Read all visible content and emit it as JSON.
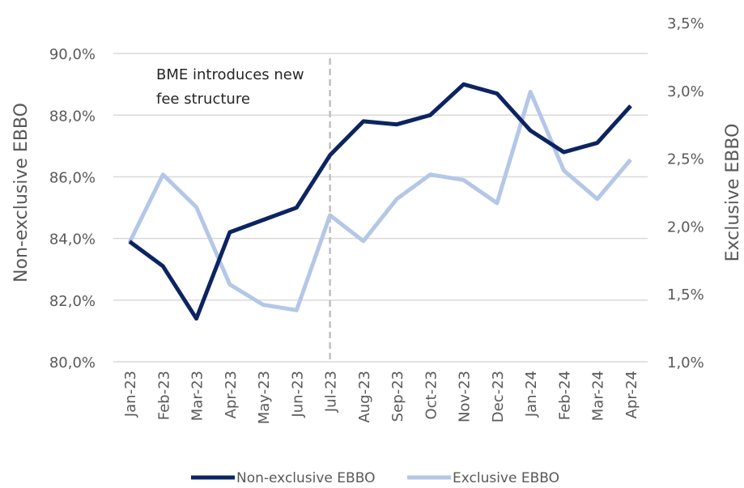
{
  "chart_data": {
    "type": "line",
    "categories": [
      "Jan-23",
      "Feb-23",
      "Mar-23",
      "Apr-23",
      "May-23",
      "Jun-23",
      "Jul-23",
      "Aug-23",
      "Sep-23",
      "Oct-23",
      "Nov-23",
      "Dec-23",
      "Jan-24",
      "Feb-24",
      "Mar-24",
      "Apr-24"
    ],
    "series": [
      {
        "name": "Non-exclusive EBBO",
        "color": "#0c2461",
        "axis": "y",
        "values": [
          83.9,
          83.1,
          81.4,
          84.2,
          84.6,
          85.0,
          86.7,
          87.8,
          87.7,
          88.0,
          89.0,
          88.7,
          87.5,
          86.8,
          87.1,
          88.3
        ]
      },
      {
        "name": "Exclusive EBBO",
        "color": "#b4c7e7",
        "axis": "y2",
        "values": [
          1.88,
          2.38,
          2.14,
          1.57,
          1.42,
          1.38,
          2.08,
          1.89,
          2.2,
          2.38,
          2.34,
          2.17,
          2.99,
          2.41,
          2.2,
          2.49
        ]
      }
    ],
    "ylabel": "Non-exclusive EBBO",
    "y2label": "Exclusive EBBO",
    "ylim": [
      80,
      91
    ],
    "yticks": [
      {
        "value": 80,
        "label": "80,0%"
      },
      {
        "value": 82,
        "label": "82,0%"
      },
      {
        "value": 84,
        "label": "84,0%"
      },
      {
        "value": 86,
        "label": "86,0%"
      },
      {
        "value": 88,
        "label": "88,0%"
      },
      {
        "value": 90,
        "label": "90,0%"
      }
    ],
    "y2lim": [
      1.0,
      3.5
    ],
    "y2ticks": [
      {
        "value": 1.0,
        "label": "1,0%"
      },
      {
        "value": 1.5,
        "label": "1,5%"
      },
      {
        "value": 2.0,
        "label": "2,0%"
      },
      {
        "value": 2.5,
        "label": "2,5%"
      },
      {
        "value": 3.0,
        "label": "3,0%"
      },
      {
        "value": 3.5,
        "label": "3,5%"
      }
    ],
    "grid": true,
    "annotation": {
      "text": [
        "BME introduces new",
        "fee structure"
      ],
      "category": "Jul-23"
    }
  }
}
